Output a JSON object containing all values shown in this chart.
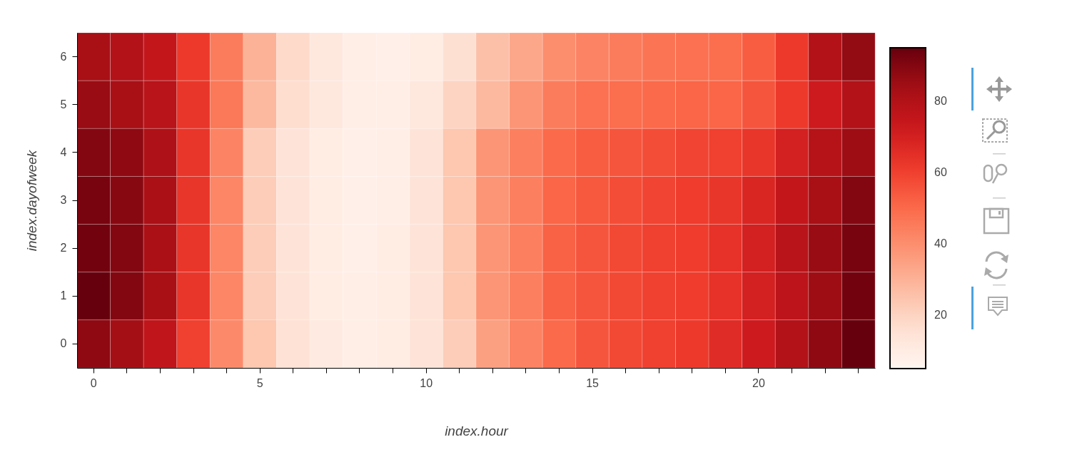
{
  "chart_data": {
    "type": "heatmap",
    "xlabel": "index.hour",
    "ylabel": "index.dayofweek",
    "categories": [
      "0",
      null,
      null,
      null,
      null,
      "5",
      null,
      null,
      null,
      null,
      "10",
      null,
      null,
      null,
      null,
      "15",
      null,
      null,
      null,
      null,
      "20",
      null,
      null,
      null
    ],
    "y_categories": [
      "6",
      "5",
      "4",
      "3",
      "2",
      "1",
      "0"
    ],
    "cells": [
      [
        83,
        80,
        75,
        62,
        45,
        30,
        18,
        12,
        9,
        8,
        10,
        16,
        26,
        33,
        40,
        43,
        45,
        47,
        48,
        49,
        53,
        62,
        80,
        87
      ],
      [
        86,
        83,
        78,
        63,
        46,
        28,
        17,
        12,
        9,
        9,
        12,
        20,
        28,
        38,
        45,
        48,
        49,
        50,
        51,
        51,
        55,
        62,
        72,
        80
      ],
      [
        90,
        88,
        81,
        63,
        43,
        22,
        14,
        10,
        8,
        9,
        14,
        24,
        38,
        44,
        50,
        53,
        55,
        57,
        59,
        60,
        63,
        70,
        79,
        85
      ],
      [
        92,
        89,
        82,
        63,
        42,
        22,
        14,
        10,
        8,
        9,
        14,
        24,
        38,
        44,
        51,
        54,
        57,
        59,
        61,
        63,
        68,
        75,
        83,
        90
      ],
      [
        93,
        90,
        82,
        63,
        42,
        22,
        14,
        10,
        8,
        10,
        14,
        24,
        38,
        44,
        52,
        55,
        58,
        60,
        61,
        64,
        70,
        78,
        86,
        92
      ],
      [
        95,
        90,
        83,
        63,
        42,
        22,
        14,
        10,
        9,
        10,
        14,
        24,
        38,
        44,
        52,
        55,
        58,
        60,
        61,
        64,
        70,
        77,
        85,
        93
      ],
      [
        88,
        84,
        76,
        60,
        41,
        24,
        15,
        11,
        9,
        10,
        14,
        22,
        35,
        43,
        50,
        55,
        58,
        60,
        62,
        66,
        72,
        80,
        88,
        95
      ]
    ],
    "clim": [
      5,
      95
    ],
    "cticks": [
      20,
      40,
      60,
      80
    ]
  }
}
